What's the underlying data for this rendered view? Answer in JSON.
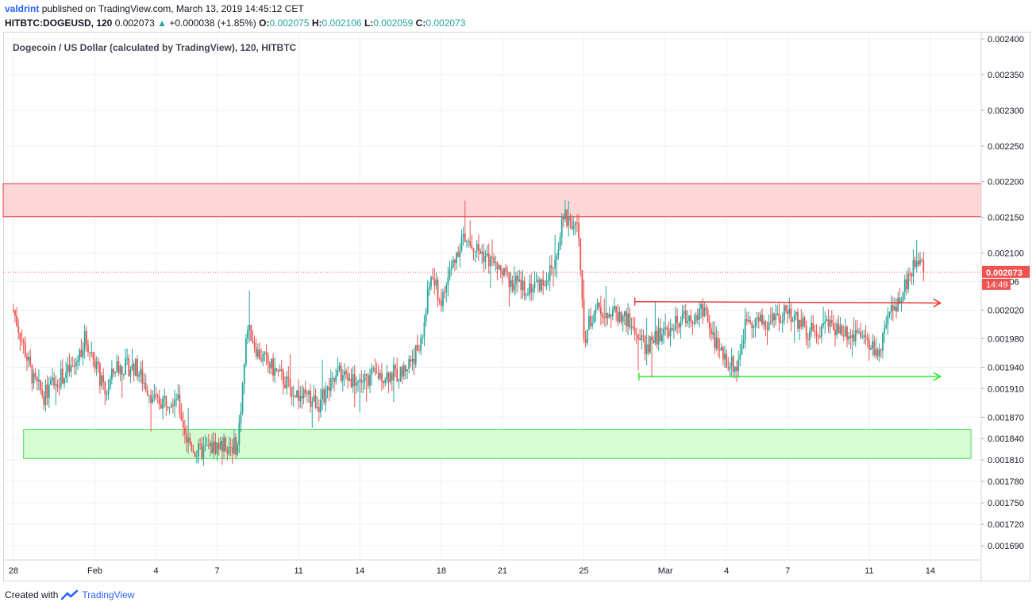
{
  "header": {
    "user": "valdrint",
    "published_text": "published on TradingView.com, March 13, 2019 14:45:12 CET",
    "symbol": "HITBTC:DOGEUSD, 120",
    "last_price": "0.002073",
    "change_arrow": "▲",
    "change": "+0.000038 (+1.85%)",
    "o_label": "O:",
    "o_value": "0.002075",
    "h_label": "H:",
    "h_value": "0.002106",
    "l_label": "L:",
    "l_value": "0.002059",
    "c_label": "C:",
    "c_value": "0.002073"
  },
  "footer": {
    "created_with": "Created with",
    "brand": "TradingView"
  },
  "colors": {
    "up": "#26a69a",
    "down": "#ef5350",
    "resistance_fill": "#fdd7d7",
    "resistance_stroke": "#e53935",
    "support_fill": "#d7fbd2",
    "support_stroke": "#4cd964",
    "red_line": "#e53935",
    "green_line": "#2ee82e",
    "price_label_bg": "#ef5350",
    "grid": "#eef0f4"
  },
  "chart_data": {
    "type": "candlestick",
    "title": "Dogecoin / US Dollar (calculated by TradingView), 120, HITBTC",
    "interval": "120",
    "ylim": [
      0.00167,
      0.00241
    ],
    "xlim_days": [
      -0.5,
      47.5
    ],
    "y_ticks": [
      "0.002400",
      "0.002350",
      "0.002300",
      "0.002250",
      "0.002200",
      "0.002150",
      "0.002100",
      "0.00206",
      "0.002020",
      "0.001980",
      "0.001940",
      "0.001910",
      "0.001870",
      "0.001840",
      "0.001810",
      "0.001780",
      "0.001750",
      "0.001720",
      "0.001690"
    ],
    "x_ticks": [
      {
        "label": "28",
        "day": 0
      },
      {
        "label": "Feb",
        "day": 4
      },
      {
        "label": "4",
        "day": 7
      },
      {
        "label": "7",
        "day": 10
      },
      {
        "label": "11",
        "day": 14
      },
      {
        "label": "14",
        "day": 17
      },
      {
        "label": "18",
        "day": 21
      },
      {
        "label": "21",
        "day": 24
      },
      {
        "label": "25",
        "day": 28
      },
      {
        "label": "Mar",
        "day": 32
      },
      {
        "label": "4",
        "day": 35
      },
      {
        "label": "7",
        "day": 38
      },
      {
        "label": "11",
        "day": 42
      },
      {
        "label": "14",
        "day": 45
      }
    ],
    "grid": true,
    "current_price": {
      "value": 0.002073,
      "label": "0.002073",
      "countdown": "14:49"
    },
    "zones": [
      {
        "name": "resistance",
        "y_low": 0.002151,
        "y_high": 0.002197,
        "x_start": -0.5,
        "x_end": 47.5
      },
      {
        "name": "support",
        "y_low": 0.001812,
        "y_high": 0.001853,
        "x_start": 0.5,
        "x_end": 47.0
      }
    ],
    "lines": [
      {
        "name": "range-top",
        "x_start": 30.5,
        "y_start": 0.002032,
        "x_end": 45.5,
        "y_end": 0.00203
      },
      {
        "name": "range-bottom",
        "x_start": 30.7,
        "y_start": 0.001927,
        "x_end": 45.5,
        "y_end": 0.001927
      }
    ],
    "price_path": [
      [
        0,
        0.00202
      ],
      [
        1,
        0.00192
      ],
      [
        1.5,
        0.0019
      ],
      [
        2,
        0.00192
      ],
      [
        3,
        0.00194
      ],
      [
        3.5,
        0.00198
      ],
      [
        4,
        0.00195
      ],
      [
        4.5,
        0.0019
      ],
      [
        5,
        0.00194
      ],
      [
        6,
        0.00194
      ],
      [
        7,
        0.00189
      ],
      [
        8,
        0.0019
      ],
      [
        8.5,
        0.00184
      ],
      [
        9,
        0.00182
      ],
      [
        10,
        0.00183
      ],
      [
        11,
        0.00183
      ],
      [
        11.5,
        0.002
      ],
      [
        12,
        0.00196
      ],
      [
        13,
        0.00193
      ],
      [
        14,
        0.0019
      ],
      [
        15,
        0.00189
      ],
      [
        16,
        0.00193
      ],
      [
        17,
        0.00192
      ],
      [
        18,
        0.00193
      ],
      [
        19,
        0.00193
      ],
      [
        20,
        0.00197
      ],
      [
        20.5,
        0.00207
      ],
      [
        21,
        0.00203
      ],
      [
        21.5,
        0.00208
      ],
      [
        22,
        0.00212
      ],
      [
        23,
        0.0021
      ],
      [
        24,
        0.00207
      ],
      [
        25,
        0.00205
      ],
      [
        26,
        0.00206
      ],
      [
        26.5,
        0.00208
      ],
      [
        27,
        0.00215
      ],
      [
        27.7,
        0.00214
      ],
      [
        28,
        0.00198
      ],
      [
        28.5,
        0.00202
      ],
      [
        29,
        0.00202
      ],
      [
        30,
        0.00201
      ],
      [
        31,
        0.00197
      ],
      [
        32,
        0.00199
      ],
      [
        33,
        0.00201
      ],
      [
        34,
        0.00202
      ],
      [
        34.5,
        0.00197
      ],
      [
        35,
        0.00195
      ],
      [
        35.5,
        0.00194
      ],
      [
        36,
        0.00201
      ],
      [
        37,
        0.002
      ],
      [
        38,
        0.00202
      ],
      [
        39,
        0.00199
      ],
      [
        40,
        0.002
      ],
      [
        41,
        0.00199
      ],
      [
        42,
        0.00197
      ],
      [
        42.5,
        0.00196
      ],
      [
        43,
        0.00201
      ],
      [
        43.5,
        0.00204
      ],
      [
        44,
        0.00207
      ],
      [
        44.4,
        0.00209
      ],
      [
        44.7,
        0.002073
      ]
    ]
  }
}
